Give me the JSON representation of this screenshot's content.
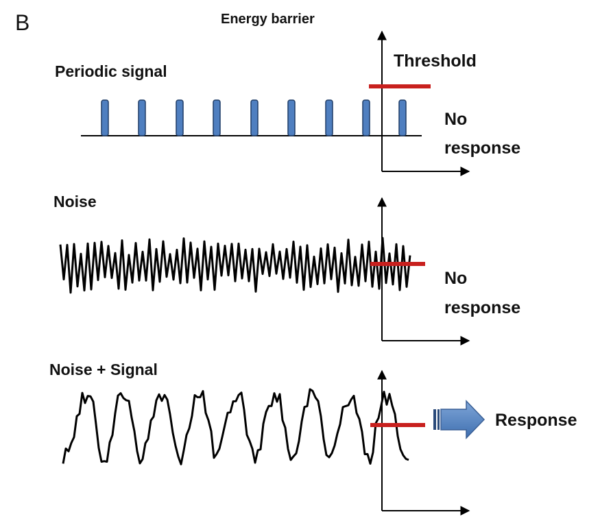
{
  "figure_label": "B",
  "axis_title": "Energy barrier",
  "threshold_label": "Threshold",
  "panels": [
    {
      "title": "Periodic signal",
      "outcome": [
        "No",
        "response"
      ]
    },
    {
      "title": "Noise",
      "outcome": [
        "No",
        "response"
      ]
    },
    {
      "title": "Noise + Signal",
      "outcome": [
        "Response"
      ]
    }
  ]
}
